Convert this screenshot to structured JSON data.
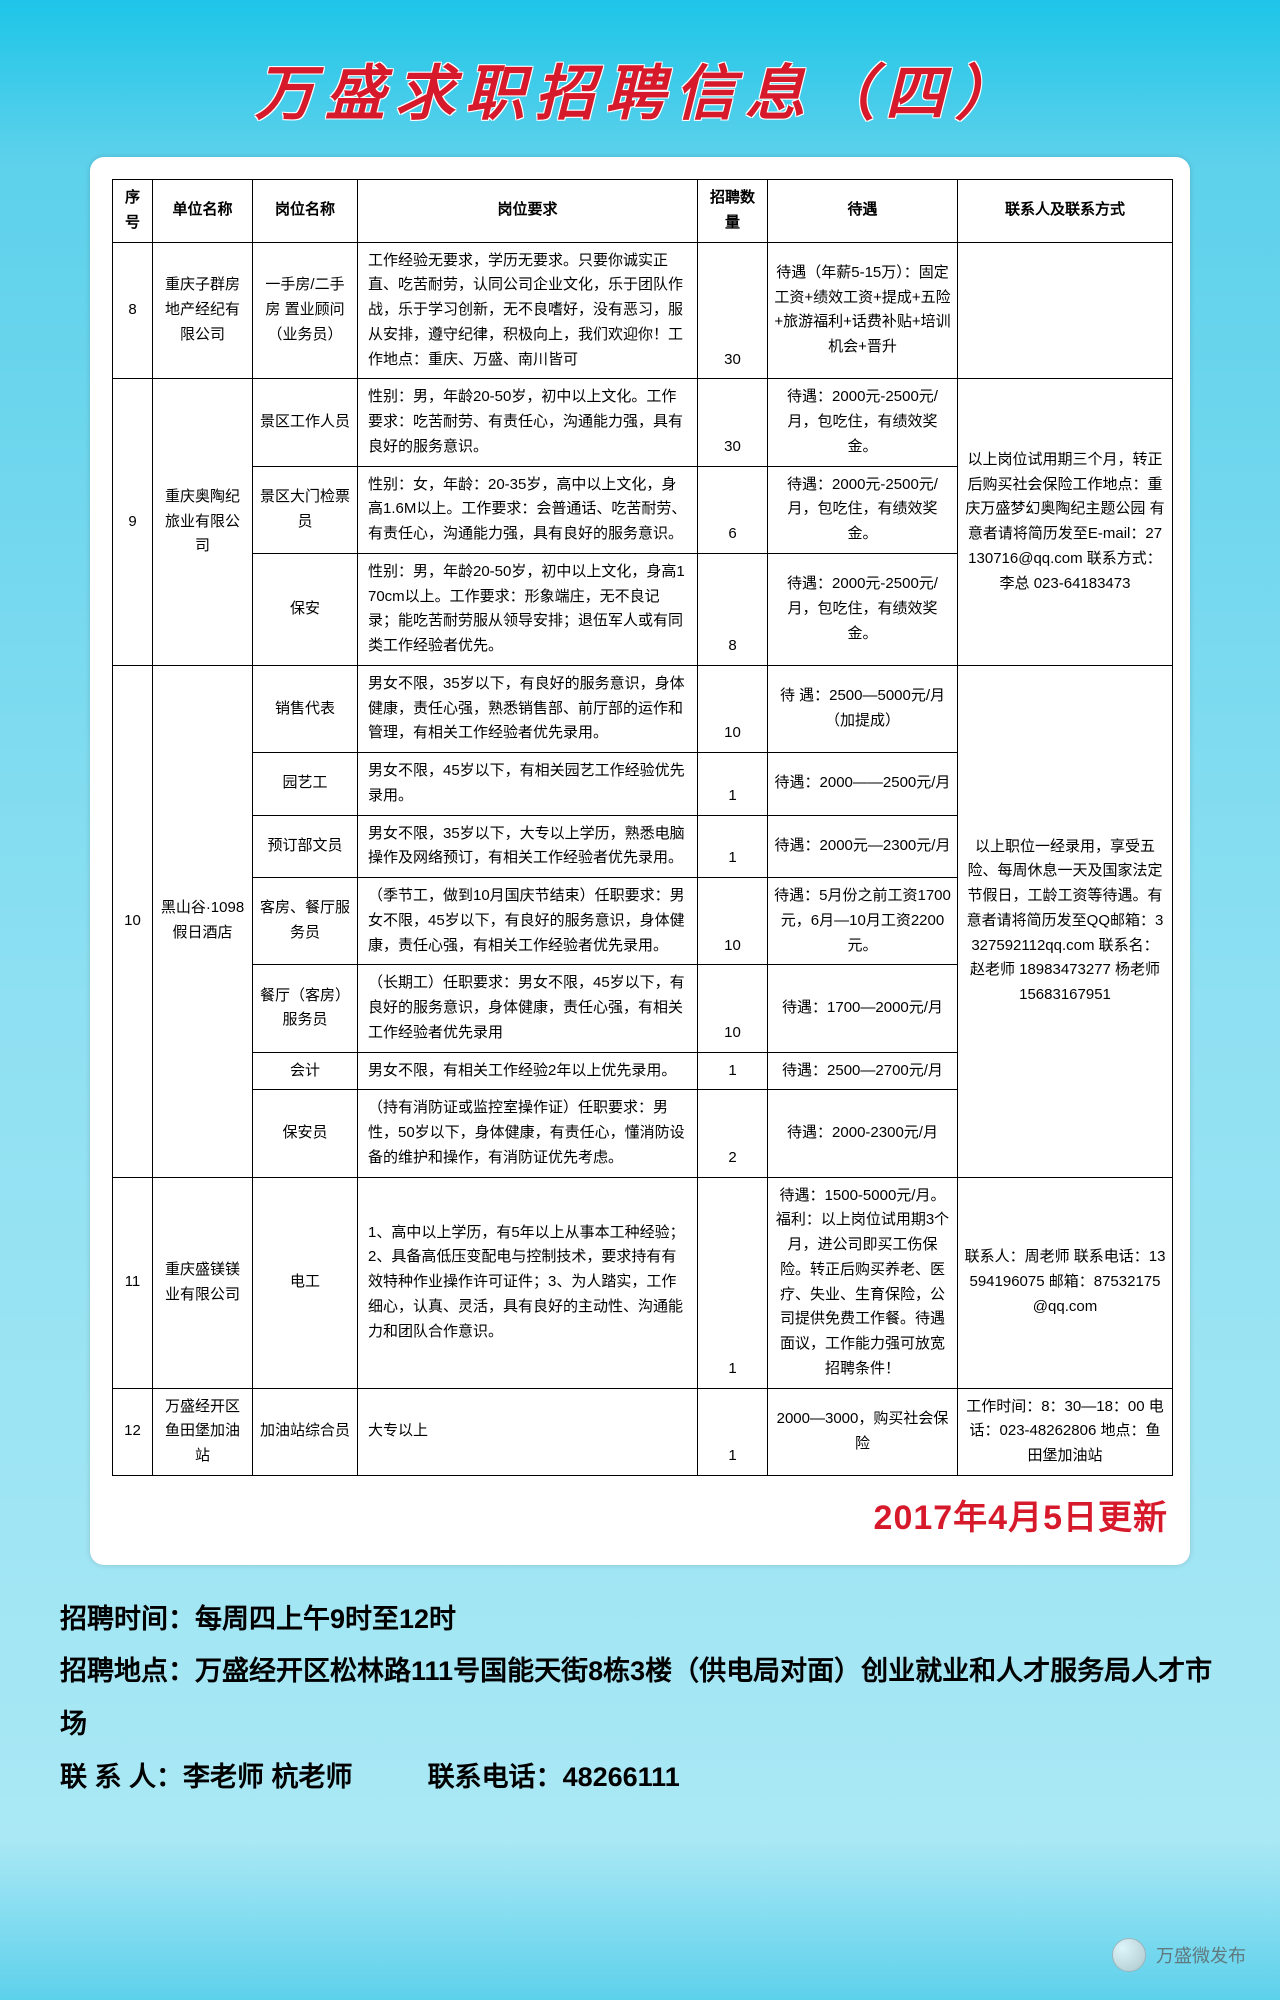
{
  "title": "万盛求职招聘信息（四）",
  "headers": {
    "idx": "序号",
    "company": "单位名称",
    "position": "岗位名称",
    "requirement": "岗位要求",
    "count": "招聘数量",
    "salary": "待遇",
    "contact": "联系人及联系方式"
  },
  "rows": [
    {
      "idx": "8",
      "company": "重庆子群房地产经纪有限公司",
      "position": "一手房/二手房 置业顾问（业务员）",
      "requirement": "工作经验无要求，学历无要求。只要你诚实正直、吃苦耐劳，认同公司企业文化，乐于团队作战，乐于学习创新，无不良嗜好，没有恶习，服从安排，遵守纪律，积极向上，我们欢迎你！工作地点：重庆、万盛、南川皆可",
      "count": "30",
      "salary": "待遇（年薪5-15万）：固定工资+绩效工资+提成+五险+旅游福利+话费补贴+培训机会+晋升",
      "contact": ""
    },
    {
      "idx": "9",
      "company": "重庆奥陶纪旅业有限公司",
      "subrows": [
        {
          "position": "景区工作人员",
          "requirement": "性别：男，年龄20-50岁，初中以上文化。工作要求：吃苦耐劳、有责任心，沟通能力强，具有良好的服务意识。",
          "count": "30",
          "salary": "待遇：2000元-2500元/月，包吃住，有绩效奖金。"
        },
        {
          "position": "景区大门检票员",
          "requirement": "性别：女，年龄：20-35岁，高中以上文化，身高1.6M以上。工作要求：会普通话、吃苦耐劳、有责任心，沟通能力强，具有良好的服务意识。",
          "count": "6",
          "salary": "待遇：2000元-2500元/月，包吃住，有绩效奖金。"
        },
        {
          "position": "保安",
          "requirement": "性别：男，年龄20-50岁，初中以上文化，身高170cm以上。工作要求：形象端庄，无不良记录；能吃苦耐劳服从领导安排；退伍军人或有同类工作经验者优先。",
          "count": "8",
          "salary": "待遇：2000元-2500元/月，包吃住，有绩效奖金。"
        }
      ],
      "contact": "以上岗位试用期三个月，转正后购买社会保险工作地点：重庆万盛梦幻奥陶纪主题公园 有意者请将简历发至E-mail：27130716@qq.com 联系方式：李总 023-64183473"
    },
    {
      "idx": "10",
      "company": "黑山谷·1098假日酒店",
      "subrows": [
        {
          "position": "销售代表",
          "requirement": "男女不限，35岁以下，有良好的服务意识，身体健康，责任心强，熟悉销售部、前厅部的运作和管理，有相关工作经验者优先录用。",
          "count": "10",
          "salary": "待 遇：2500—5000元/月（加提成）"
        },
        {
          "position": "园艺工",
          "requirement": "男女不限，45岁以下，有相关园艺工作经验优先录用。",
          "count": "1",
          "salary": "待遇：2000——2500元/月"
        },
        {
          "position": "预订部文员",
          "requirement": "男女不限，35岁以下，大专以上学历，熟悉电脑操作及网络预订，有相关工作经验者优先录用。",
          "count": "1",
          "salary": "待遇：2000元—2300元/月"
        },
        {
          "position": "客房、餐厅服务员",
          "requirement": "（季节工，做到10月国庆节结束）任职要求：男女不限，45岁以下，有良好的服务意识，身体健康，责任心强，有相关工作经验者优先录用。",
          "count": "10",
          "salary": "待遇：5月份之前工资1700元，6月—10月工资2200元。"
        },
        {
          "position": "餐厅（客房）服务员",
          "requirement": "（长期工）任职要求：男女不限，45岁以下，有良好的服务意识，身体健康，责任心强，有相关工作经验者优先录用",
          "count": "10",
          "salary": "待遇：1700—2000元/月"
        },
        {
          "position": "会计",
          "requirement": "男女不限，有相关工作经验2年以上优先录用。",
          "count": "1",
          "salary": "待遇：2500—2700元/月"
        },
        {
          "position": "保安员",
          "requirement": "（持有消防证或监控室操作证）任职要求：男性，50岁以下，身体健康，有责任心，懂消防设备的维护和操作，有消防证优先考虑。",
          "count": "2",
          "salary": "待遇：2000-2300元/月"
        }
      ],
      "contact": "以上职位一经录用，享受五险、每周休息一天及国家法定节假日，工龄工资等待遇。有意者请将简历发至QQ邮箱：3327592112qq.com 联系名：赵老师 18983473277 杨老师 15683167951"
    },
    {
      "idx": "11",
      "company": "重庆盛镁镁业有限公司",
      "position": "电工",
      "requirement": "1、高中以上学历，有5年以上从事本工种经验；2、具备高低压变配电与控制技术，要求持有有效特种作业操作许可证件；3、为人踏实，工作细心，认真、灵活，具有良好的主动性、沟通能力和团队合作意识。",
      "count": "1",
      "salary": "待遇：1500-5000元/月。福利：以上岗位试用期3个月，进公司即买工伤保险。转正后购买养老、医疗、失业、生育保险，公司提供免费工作餐。待遇面议，工作能力强可放宽招聘条件！",
      "contact": "联系人：周老师 联系电话：13594196075 邮箱：87532175@qq.com"
    },
    {
      "idx": "12",
      "company": "万盛经开区鱼田堡加油站",
      "position": "加油站综合员",
      "requirement": "大专以上",
      "count": "1",
      "salary": "2000—3000，购买社会保险",
      "contact": "工作时间：8：30—18：00 电话：023-48262806 地点：鱼田堡加油站"
    }
  ],
  "update": "2017年4月5日更新",
  "footer": {
    "time_lbl": "招聘时间：",
    "time_val": "每周四上午9时至12时",
    "addr_lbl": "招聘地点：",
    "addr_val": "万盛经开区松林路111号国能天街8栋3楼（供电局对面）创业就业和人才服务局人才市场",
    "contact_lbl": "联 系 人：",
    "contact_val": "李老师 杭老师",
    "tel_lbl": "联系电话：",
    "tel_val": "48266111"
  },
  "watermark": "万盛微发布"
}
